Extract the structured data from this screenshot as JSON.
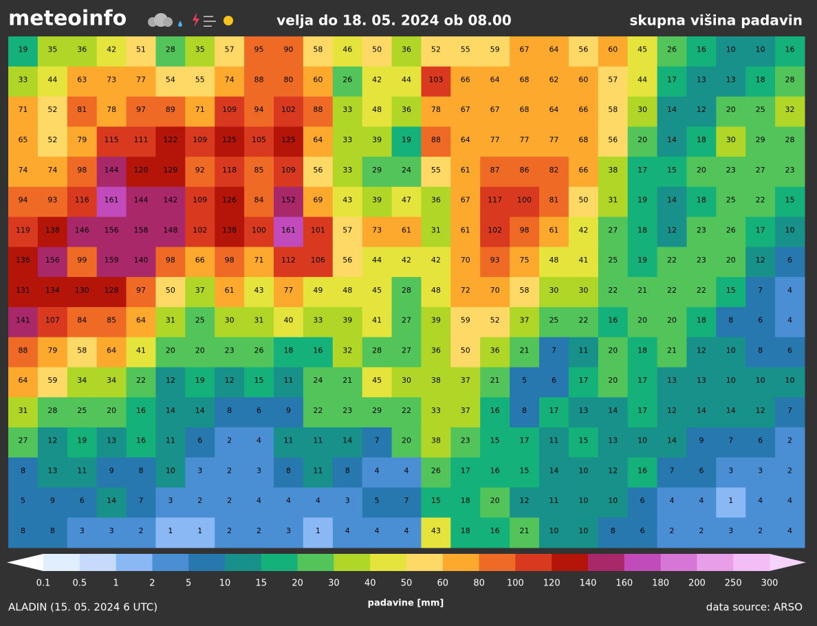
{
  "header": {
    "logo": "meteoinfo",
    "valid": "velja do 18. 05. 2024 ob 08.00",
    "title": "skupna višina padavin"
  },
  "grid": {
    "rows": [
      [
        19,
        35,
        36,
        42,
        51,
        28,
        35,
        57,
        95,
        90,
        58,
        46,
        50,
        36,
        52,
        55,
        59,
        67,
        64,
        56,
        60,
        45,
        26,
        16,
        10,
        10,
        16
      ],
      [
        33,
        44,
        63,
        73,
        77,
        54,
        55,
        74,
        88,
        80,
        60,
        26,
        42,
        44,
        103,
        66,
        64,
        68,
        62,
        60,
        57,
        44,
        17,
        13,
        13,
        18,
        28
      ],
      [
        71,
        52,
        81,
        78,
        97,
        89,
        71,
        109,
        94,
        102,
        88,
        33,
        48,
        36,
        78,
        67,
        67,
        68,
        64,
        66,
        58,
        30,
        14,
        12,
        20,
        25,
        32
      ],
      [
        65,
        52,
        79,
        115,
        111,
        122,
        109,
        125,
        105,
        125,
        64,
        33,
        39,
        19,
        88,
        64,
        77,
        77,
        77,
        68,
        56,
        20,
        14,
        18,
        30,
        29,
        28
      ],
      [
        74,
        74,
        98,
        144,
        120,
        129,
        92,
        118,
        85,
        109,
        56,
        33,
        29,
        24,
        55,
        61,
        87,
        86,
        82,
        66,
        38,
        17,
        15,
        20,
        23,
        27,
        23
      ],
      [
        94,
        93,
        116,
        161,
        144,
        142,
        109,
        126,
        84,
        152,
        69,
        43,
        39,
        47,
        36,
        67,
        117,
        100,
        81,
        50,
        31,
        19,
        14,
        18,
        25,
        22,
        15
      ],
      [
        119,
        138,
        146,
        156,
        158,
        148,
        102,
        138,
        100,
        161,
        101,
        57,
        73,
        61,
        31,
        61,
        102,
        98,
        61,
        42,
        27,
        18,
        12,
        23,
        26,
        17,
        10
      ],
      [
        136,
        156,
        99,
        159,
        140,
        98,
        66,
        98,
        71,
        112,
        106,
        56,
        44,
        42,
        42,
        70,
        93,
        75,
        48,
        41,
        25,
        19,
        22,
        23,
        20,
        12,
        6
      ],
      [
        131,
        134,
        130,
        128,
        97,
        50,
        37,
        61,
        43,
        77,
        49,
        48,
        45,
        28,
        48,
        72,
        70,
        58,
        30,
        30,
        22,
        21,
        22,
        22,
        15,
        7,
        4
      ],
      [
        141,
        107,
        84,
        85,
        64,
        31,
        25,
        30,
        31,
        40,
        33,
        39,
        41,
        27,
        39,
        59,
        52,
        37,
        25,
        22,
        16,
        20,
        20,
        18,
        8,
        6,
        4
      ],
      [
        88,
        79,
        58,
        64,
        41,
        20,
        20,
        23,
        26,
        18,
        16,
        32,
        28,
        27,
        36,
        50,
        36,
        21,
        7,
        11,
        20,
        18,
        21,
        12,
        10,
        8,
        6
      ],
      [
        64,
        59,
        34,
        34,
        22,
        12,
        19,
        12,
        15,
        11,
        24,
        21,
        45,
        30,
        38,
        37,
        21,
        5,
        6,
        17,
        20,
        17,
        13,
        13,
        10,
        10,
        10
      ],
      [
        31,
        28,
        25,
        20,
        16,
        14,
        14,
        8,
        6,
        9,
        22,
        23,
        29,
        22,
        33,
        37,
        16,
        8,
        17,
        13,
        14,
        17,
        12,
        14,
        14,
        12,
        7
      ],
      [
        27,
        12,
        19,
        13,
        16,
        11,
        6,
        2,
        4,
        11,
        11,
        14,
        7,
        20,
        38,
        23,
        15,
        17,
        11,
        15,
        13,
        10,
        14,
        9,
        7,
        6,
        2
      ],
      [
        8,
        13,
        11,
        9,
        8,
        10,
        3,
        2,
        3,
        8,
        11,
        8,
        4,
        4,
        26,
        17,
        16,
        15,
        14,
        10,
        12,
        16,
        7,
        6,
        3,
        3,
        2
      ],
      [
        5,
        9,
        6,
        14,
        7,
        3,
        2,
        2,
        4,
        4,
        4,
        3,
        5,
        7,
        15,
        18,
        20,
        12,
        11,
        10,
        10,
        6,
        4,
        4,
        1,
        4,
        4
      ],
      [
        8,
        8,
        3,
        3,
        2,
        1,
        1,
        2,
        2,
        3,
        1,
        4,
        4,
        4,
        43,
        18,
        16,
        21,
        10,
        10,
        8,
        6,
        2,
        2,
        3,
        2,
        4
      ]
    ]
  },
  "colorbar": {
    "label": "padavine [mm]",
    "levels": [
      0.1,
      0.5,
      1,
      2,
      5,
      10,
      15,
      20,
      30,
      40,
      50,
      60,
      80,
      100,
      120,
      140,
      160,
      180,
      200,
      250,
      300
    ],
    "colors": [
      "#ffffff",
      "#e1eefe",
      "#c6dbfc",
      "#8ab8f5",
      "#4a8fd4",
      "#2878b0",
      "#17918a",
      "#14b27a",
      "#52c45a",
      "#b0d727",
      "#e4e43d",
      "#ffd966",
      "#fda92e",
      "#ef6a25",
      "#d93a1f",
      "#b51409",
      "#a8286a",
      "#c14bba",
      "#d876d8",
      "#e89ee8",
      "#f3bdf6",
      "#f5d3fa"
    ]
  },
  "footer": {
    "model": "ALADIN (15. 05. 2024 6 UTC)",
    "source": "data source: ARSO"
  }
}
